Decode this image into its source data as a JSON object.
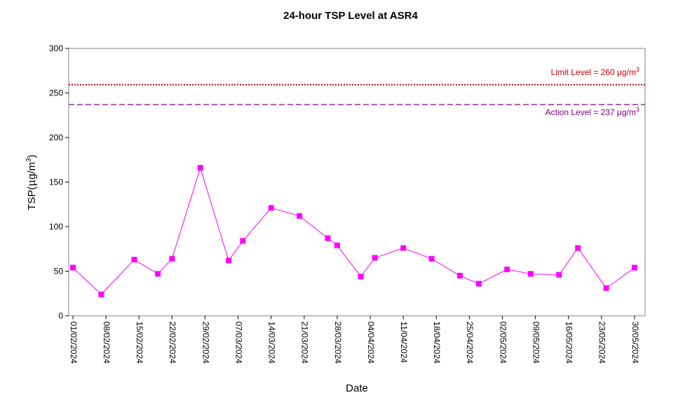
{
  "chart_data": {
    "type": "line",
    "title": "24-hour TSP Level at ASR4",
    "xlabel": "Date",
    "ylabel": "TSP(μg/m³)",
    "ylim": [
      0,
      300
    ],
    "yticks": [
      "0",
      "50",
      "100",
      "150",
      "200",
      "250",
      "300"
    ],
    "xlim": [
      "2024-02-01",
      "2024-05-30"
    ],
    "xticks": [
      {
        "date": "2024-02-01",
        "label": "01/02/2024"
      },
      {
        "date": "2024-02-08",
        "label": "08/02/2024"
      },
      {
        "date": "2024-02-15",
        "label": "15/02/2024"
      },
      {
        "date": "2024-02-22",
        "label": "22/02/2024"
      },
      {
        "date": "2024-02-29",
        "label": "29/02/2024"
      },
      {
        "date": "2024-03-07",
        "label": "07/03/2024"
      },
      {
        "date": "2024-03-14",
        "label": "14/03/2024"
      },
      {
        "date": "2024-03-21",
        "label": "21/03/2024"
      },
      {
        "date": "2024-03-28",
        "label": "28/03/2024"
      },
      {
        "date": "2024-04-04",
        "label": "04/04/2024"
      },
      {
        "date": "2024-04-11",
        "label": "11/04/2024"
      },
      {
        "date": "2024-04-18",
        "label": "18/04/2024"
      },
      {
        "date": "2024-04-25",
        "label": "25/04/2024"
      },
      {
        "date": "2024-05-02",
        "label": "02/05/2024"
      },
      {
        "date": "2024-05-09",
        "label": "09/05/2024"
      },
      {
        "date": "2024-05-16",
        "label": "16/05/2024"
      },
      {
        "date": "2024-05-23",
        "label": "23/05/2024"
      },
      {
        "date": "2024-05-30",
        "label": "30/05/2024"
      }
    ],
    "series": [
      {
        "color": "#FF00FF",
        "points": [
          {
            "x": "2024-02-01",
            "y": 54
          },
          {
            "x": "2024-02-07",
            "y": 24
          },
          {
            "x": "2024-02-14",
            "y": 63
          },
          {
            "x": "2024-02-19",
            "y": 47
          },
          {
            "x": "2024-02-22",
            "y": 64
          },
          {
            "x": "2024-02-28",
            "y": 166
          },
          {
            "x": "2024-03-05",
            "y": 62
          },
          {
            "x": "2024-03-08",
            "y": 84
          },
          {
            "x": "2024-03-14",
            "y": 121
          },
          {
            "x": "2024-03-20",
            "y": 112
          },
          {
            "x": "2024-03-26",
            "y": 87
          },
          {
            "x": "2024-03-28",
            "y": 79
          },
          {
            "x": "2024-04-02",
            "y": 44
          },
          {
            "x": "2024-04-05",
            "y": 65
          },
          {
            "x": "2024-04-11",
            "y": 76
          },
          {
            "x": "2024-04-17",
            "y": 64
          },
          {
            "x": "2024-04-23",
            "y": 45
          },
          {
            "x": "2024-04-27",
            "y": 36
          },
          {
            "x": "2024-05-03",
            "y": 52
          },
          {
            "x": "2024-05-08",
            "y": 47
          },
          {
            "x": "2024-05-14",
            "y": 46
          },
          {
            "x": "2024-05-18",
            "y": 76
          },
          {
            "x": "2024-05-24",
            "y": 31
          },
          {
            "x": "2024-05-30",
            "y": 54
          }
        ]
      }
    ],
    "reference_lines": [
      {
        "name": "limit",
        "label": "Limit Level  = 260 μg/m",
        "superscript": "3",
        "y": 260,
        "color": "#CC0000",
        "style": "dotted"
      },
      {
        "name": "action",
        "label": "Action Level  = 237 μg/m",
        "superscript": "3",
        "y": 237,
        "color": "#800080",
        "style": "dashed"
      }
    ],
    "grid": false,
    "legend": "none"
  }
}
